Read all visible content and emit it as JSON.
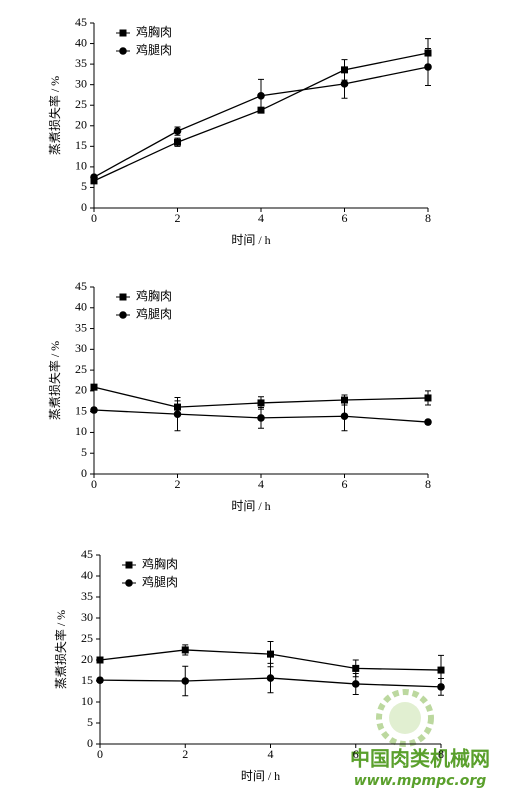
{
  "chart_data": [
    {
      "type": "line",
      "xlabel": "时间 / h",
      "ylabel": "蒸煮损失率 / %",
      "x": [
        0,
        2,
        4,
        6,
        8
      ],
      "xlim": [
        0,
        8
      ],
      "xticks": [
        0,
        2,
        4,
        6,
        8
      ],
      "ylim": [
        0,
        45
      ],
      "yticks": [
        0,
        5,
        10,
        15,
        20,
        25,
        30,
        35,
        40,
        45
      ],
      "legend": "upper left",
      "series": [
        {
          "name": "鸡胸肉",
          "color": "#000000",
          "marker": "square",
          "values": [
            6.6,
            16,
            23.8,
            33.6,
            37.7
          ],
          "errors": [
            0.5,
            1,
            0.5,
            2.5,
            3.5
          ]
        },
        {
          "name": "鸡腿肉",
          "color": "#000000",
          "marker": "circle",
          "values": [
            7.5,
            18.7,
            27.3,
            30.2,
            34.3
          ],
          "errors": [
            0.5,
            1,
            4,
            3.5,
            4.5
          ]
        }
      ]
    },
    {
      "type": "line",
      "xlabel": "时间 / h",
      "ylabel": "蒸煮损失率 / %",
      "x": [
        0,
        2,
        4,
        6,
        8
      ],
      "xlim": [
        0,
        8
      ],
      "xticks": [
        0,
        2,
        4,
        6,
        8
      ],
      "ylim": [
        0,
        45
      ],
      "yticks": [
        0,
        5,
        10,
        15,
        20,
        25,
        30,
        35,
        40,
        45
      ],
      "legend": "upper left",
      "series": [
        {
          "name": "鸡胸肉",
          "color": "#000000",
          "marker": "square",
          "values": [
            20.9,
            16.1,
            17.1,
            17.8,
            18.3
          ],
          "errors": [
            0.5,
            1.5,
            1.5,
            1.2,
            1.7
          ]
        },
        {
          "name": "鸡腿肉",
          "color": "#000000",
          "marker": "circle",
          "values": [
            15.4,
            14.4,
            13.5,
            13.9,
            12.5
          ],
          "errors": [
            0.5,
            4,
            2.5,
            3.5,
            0.5
          ]
        }
      ]
    },
    {
      "type": "line",
      "xlabel": "时间 / h",
      "ylabel": "蒸煮损失率 / %",
      "x": [
        0,
        2,
        4,
        6,
        8
      ],
      "xlim": [
        0,
        8
      ],
      "xticks": [
        0,
        2,
        4,
        6,
        8
      ],
      "ylim": [
        0,
        45
      ],
      "yticks": [
        0,
        5,
        10,
        15,
        20,
        25,
        30,
        35,
        40,
        45
      ],
      "legend": "upper left",
      "series": [
        {
          "name": "鸡胸肉",
          "color": "#000000",
          "marker": "square",
          "values": [
            20,
            22.4,
            21.4,
            18,
            17.6
          ],
          "errors": [
            0.5,
            1.2,
            3,
            2,
            3.5
          ]
        },
        {
          "name": "鸡腿肉",
          "color": "#000000",
          "marker": "circle",
          "values": [
            15.2,
            15,
            15.7,
            14.3,
            13.6
          ],
          "errors": [
            0.5,
            3.5,
            3.5,
            2.5,
            2
          ]
        }
      ]
    }
  ],
  "watermark": {
    "title": "中国肉类机械网",
    "url": "www.mpmpc.org"
  }
}
